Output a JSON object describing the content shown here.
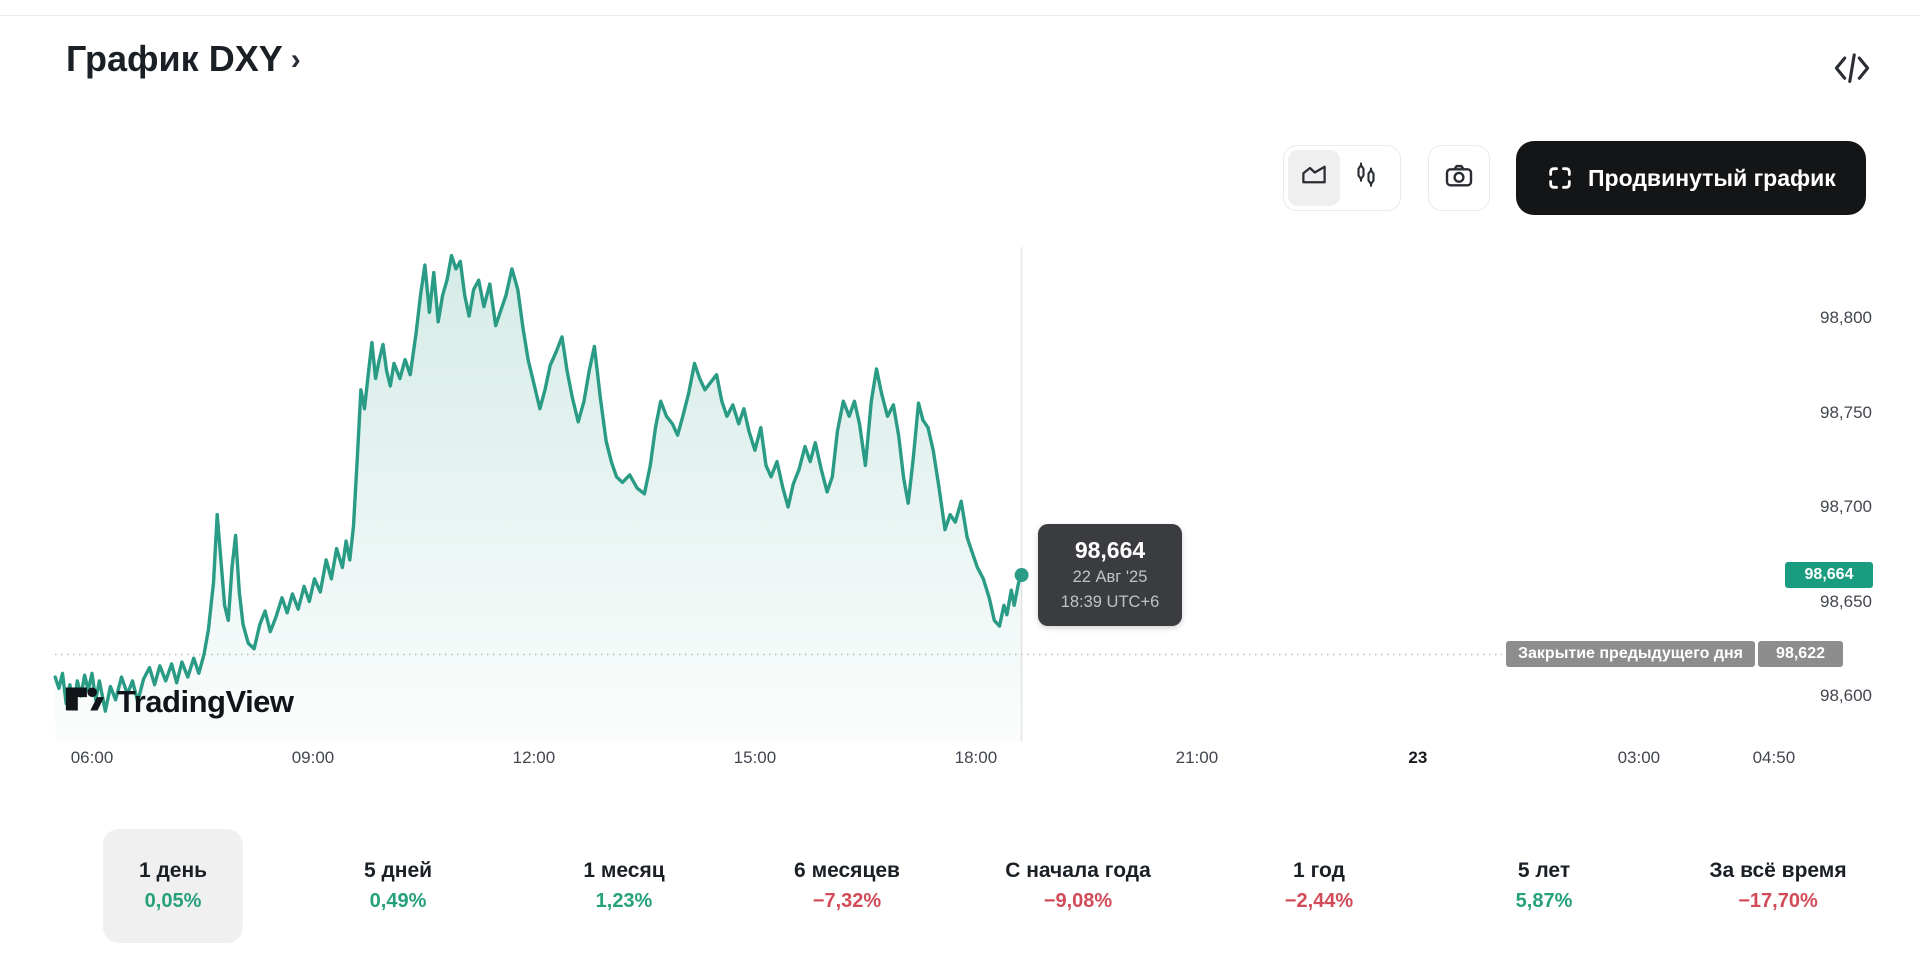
{
  "header": {
    "title": "График DXY",
    "chevron": "›"
  },
  "toolbar": {
    "chart_style_options": [
      "area",
      "candles"
    ],
    "selected_style": "area",
    "advanced_button_label": "Продвинутый график"
  },
  "tooltip": {
    "price": "98,664",
    "date": "22 Авг '25",
    "time": "18:39 UTC+6"
  },
  "price_scale": {
    "ticks": [
      {
        "label": "98,800",
        "value": 98800
      },
      {
        "label": "98,750",
        "value": 98750
      },
      {
        "label": "98,700",
        "value": 98700
      },
      {
        "label": "98,650",
        "value": 98650
      },
      {
        "label": "98,600",
        "value": 98600
      }
    ],
    "current_badge": {
      "label": "98,664",
      "value": 98664,
      "color": "#1a9c80"
    },
    "prev_close_badge": {
      "label": "Закрытие предыдущего дня",
      "value_label": "98,622",
      "value": 98622,
      "color": "#8d8d8d"
    }
  },
  "time_scale": {
    "ticks": [
      {
        "label": "06:00",
        "t": 6,
        "bold": false
      },
      {
        "label": "09:00",
        "t": 9,
        "bold": false
      },
      {
        "label": "12:00",
        "t": 12,
        "bold": false
      },
      {
        "label": "15:00",
        "t": 15,
        "bold": false
      },
      {
        "label": "18:00",
        "t": 18,
        "bold": false
      },
      {
        "label": "21:00",
        "t": 21,
        "bold": false
      },
      {
        "label": "23",
        "t": 24,
        "bold": true
      },
      {
        "label": "03:00",
        "t": 27,
        "bold": false
      },
      {
        "label": "04:50",
        "t": 28.833,
        "bold": false
      }
    ]
  },
  "watermark_text": "TradingView",
  "ranges": [
    {
      "label": "1 день",
      "change": "0,05%",
      "dir": "up",
      "selected": true
    },
    {
      "label": "5 дней",
      "change": "0,49%",
      "dir": "up",
      "selected": false
    },
    {
      "label": "1 месяц",
      "change": "1,23%",
      "dir": "up",
      "selected": false
    },
    {
      "label": "6 месяцев",
      "change": "−7,32%",
      "dir": "down",
      "selected": false
    },
    {
      "label": "С начала года",
      "change": "−9,08%",
      "dir": "down",
      "selected": false
    },
    {
      "label": "1 год",
      "change": "−2,44%",
      "dir": "down",
      "selected": false
    },
    {
      "label": "5 лет",
      "change": "5,87%",
      "dir": "up",
      "selected": false
    },
    {
      "label": "За всё время",
      "change": "−17,70%",
      "dir": "down",
      "selected": false
    }
  ],
  "chart_data": {
    "type": "area",
    "symbol": "DXY",
    "title": "График DXY",
    "x_unit": "hours_local_utc+6",
    "xlim": [
      5.4,
      28.95
    ],
    "ylim": [
      98575,
      98860
    ],
    "grid": false,
    "line_color": "#2a9b85",
    "fill_top": "rgba(42,155,133,0.20)",
    "fill_bottom": "rgba(42,155,133,0.02)",
    "prev_close": 98622,
    "current_value": 98664,
    "current_time_label": "18:39 UTC+6",
    "session_split_t": 18.62,
    "series": [
      {
        "name": "DXY",
        "points": [
          [
            5.5,
            98610
          ],
          [
            5.55,
            98604
          ],
          [
            5.6,
            98612
          ],
          [
            5.65,
            98596
          ],
          [
            5.7,
            98606
          ],
          [
            5.75,
            98594
          ],
          [
            5.8,
            98608
          ],
          [
            5.85,
            98600
          ],
          [
            5.9,
            98611
          ],
          [
            5.95,
            98603
          ],
          [
            6.0,
            98612
          ],
          [
            6.05,
            98598
          ],
          [
            6.1,
            98608
          ],
          [
            6.18,
            98592
          ],
          [
            6.25,
            98605
          ],
          [
            6.32,
            98598
          ],
          [
            6.4,
            98610
          ],
          [
            6.48,
            98601
          ],
          [
            6.55,
            98608
          ],
          [
            6.62,
            98597
          ],
          [
            6.7,
            98609
          ],
          [
            6.78,
            98615
          ],
          [
            6.85,
            98606
          ],
          [
            6.92,
            98616
          ],
          [
            7.0,
            98608
          ],
          [
            7.08,
            98617
          ],
          [
            7.15,
            98607
          ],
          [
            7.22,
            98618
          ],
          [
            7.3,
            98610
          ],
          [
            7.38,
            98620
          ],
          [
            7.45,
            98612
          ],
          [
            7.52,
            98622
          ],
          [
            7.58,
            98635
          ],
          [
            7.65,
            98660
          ],
          [
            7.7,
            98696
          ],
          [
            7.75,
            98672
          ],
          [
            7.8,
            98648
          ],
          [
            7.85,
            98640
          ],
          [
            7.9,
            98668
          ],
          [
            7.95,
            98685
          ],
          [
            8.0,
            98655
          ],
          [
            8.05,
            98638
          ],
          [
            8.12,
            98628
          ],
          [
            8.2,
            98625
          ],
          [
            8.28,
            98638
          ],
          [
            8.35,
            98645
          ],
          [
            8.42,
            98634
          ],
          [
            8.5,
            98642
          ],
          [
            8.58,
            98652
          ],
          [
            8.65,
            98644
          ],
          [
            8.72,
            98654
          ],
          [
            8.8,
            98646
          ],
          [
            8.88,
            98658
          ],
          [
            8.95,
            98650
          ],
          [
            9.02,
            98662
          ],
          [
            9.1,
            98655
          ],
          [
            9.18,
            98672
          ],
          [
            9.25,
            98662
          ],
          [
            9.32,
            98678
          ],
          [
            9.4,
            98668
          ],
          [
            9.45,
            98682
          ],
          [
            9.5,
            98672
          ],
          [
            9.55,
            98690
          ],
          [
            9.6,
            98725
          ],
          [
            9.65,
            98762
          ],
          [
            9.7,
            98752
          ],
          [
            9.75,
            98770
          ],
          [
            9.8,
            98787
          ],
          [
            9.85,
            98768
          ],
          [
            9.9,
            98778
          ],
          [
            9.95,
            98786
          ],
          [
            10.0,
            98772
          ],
          [
            10.05,
            98764
          ],
          [
            10.1,
            98776
          ],
          [
            10.18,
            98768
          ],
          [
            10.25,
            98778
          ],
          [
            10.32,
            98770
          ],
          [
            10.4,
            98792
          ],
          [
            10.46,
            98812
          ],
          [
            10.52,
            98828
          ],
          [
            10.58,
            98803
          ],
          [
            10.64,
            98824
          ],
          [
            10.7,
            98798
          ],
          [
            10.76,
            98812
          ],
          [
            10.82,
            98820
          ],
          [
            10.88,
            98833
          ],
          [
            10.94,
            98826
          ],
          [
            11.0,
            98830
          ],
          [
            11.06,
            98812
          ],
          [
            11.12,
            98801
          ],
          [
            11.18,
            98815
          ],
          [
            11.25,
            98820
          ],
          [
            11.32,
            98806
          ],
          [
            11.4,
            98818
          ],
          [
            11.48,
            98796
          ],
          [
            11.55,
            98804
          ],
          [
            11.62,
            98812
          ],
          [
            11.7,
            98826
          ],
          [
            11.78,
            98815
          ],
          [
            11.85,
            98795
          ],
          [
            11.92,
            98778
          ],
          [
            12.0,
            98765
          ],
          [
            12.08,
            98752
          ],
          [
            12.15,
            98762
          ],
          [
            12.22,
            98775
          ],
          [
            12.3,
            98782
          ],
          [
            12.38,
            98790
          ],
          [
            12.45,
            98772
          ],
          [
            12.52,
            98758
          ],
          [
            12.6,
            98745
          ],
          [
            12.68,
            98756
          ],
          [
            12.75,
            98772
          ],
          [
            12.82,
            98785
          ],
          [
            12.9,
            98758
          ],
          [
            12.98,
            98735
          ],
          [
            13.05,
            98724
          ],
          [
            13.12,
            98716
          ],
          [
            13.2,
            98713
          ],
          [
            13.3,
            98717
          ],
          [
            13.4,
            98710
          ],
          [
            13.5,
            98707
          ],
          [
            13.58,
            98722
          ],
          [
            13.65,
            98742
          ],
          [
            13.72,
            98756
          ],
          [
            13.8,
            98748
          ],
          [
            13.88,
            98744
          ],
          [
            13.95,
            98738
          ],
          [
            14.02,
            98748
          ],
          [
            14.1,
            98760
          ],
          [
            14.18,
            98776
          ],
          [
            14.25,
            98768
          ],
          [
            14.32,
            98762
          ],
          [
            14.4,
            98766
          ],
          [
            14.48,
            98770
          ],
          [
            14.55,
            98756
          ],
          [
            14.62,
            98748
          ],
          [
            14.7,
            98754
          ],
          [
            14.78,
            98744
          ],
          [
            14.85,
            98752
          ],
          [
            14.92,
            98740
          ],
          [
            15.0,
            98730
          ],
          [
            15.08,
            98742
          ],
          [
            15.15,
            98722
          ],
          [
            15.22,
            98716
          ],
          [
            15.3,
            98724
          ],
          [
            15.38,
            98710
          ],
          [
            15.45,
            98700
          ],
          [
            15.52,
            98712
          ],
          [
            15.6,
            98720
          ],
          [
            15.68,
            98732
          ],
          [
            15.75,
            98724
          ],
          [
            15.82,
            98734
          ],
          [
            15.9,
            98720
          ],
          [
            15.98,
            98708
          ],
          [
            16.05,
            98716
          ],
          [
            16.12,
            98740
          ],
          [
            16.2,
            98756
          ],
          [
            16.28,
            98748
          ],
          [
            16.35,
            98756
          ],
          [
            16.42,
            98744
          ],
          [
            16.5,
            98722
          ],
          [
            16.58,
            98756
          ],
          [
            16.65,
            98773
          ],
          [
            16.72,
            98760
          ],
          [
            16.8,
            98748
          ],
          [
            16.88,
            98754
          ],
          [
            16.95,
            98738
          ],
          [
            17.02,
            98715
          ],
          [
            17.08,
            98702
          ],
          [
            17.15,
            98726
          ],
          [
            17.22,
            98755
          ],
          [
            17.28,
            98746
          ],
          [
            17.35,
            98742
          ],
          [
            17.42,
            98730
          ],
          [
            17.5,
            98710
          ],
          [
            17.58,
            98688
          ],
          [
            17.65,
            98696
          ],
          [
            17.72,
            98692
          ],
          [
            17.8,
            98703
          ],
          [
            17.88,
            98684
          ],
          [
            17.95,
            98676
          ],
          [
            18.02,
            98668
          ],
          [
            18.1,
            98662
          ],
          [
            18.18,
            98652
          ],
          [
            18.25,
            98640
          ],
          [
            18.32,
            98637
          ],
          [
            18.38,
            98648
          ],
          [
            18.42,
            98643
          ],
          [
            18.48,
            98656
          ],
          [
            18.52,
            98648
          ],
          [
            18.58,
            98660
          ],
          [
            18.62,
            98664
          ]
        ]
      }
    ]
  }
}
